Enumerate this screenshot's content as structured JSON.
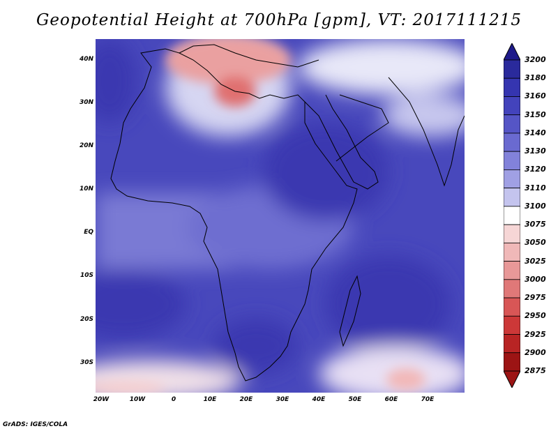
{
  "title": "Geopotential Height at 700hPa [gpm], VT: 2017111215",
  "credit": "GrADS: IGES/COLA",
  "lat_labels": [
    "40N",
    "30N",
    "20N",
    "10N",
    "EQ",
    "10S",
    "20S",
    "30S"
  ],
  "lon_labels": [
    "20W",
    "10W",
    "0",
    "10E",
    "20E",
    "30E",
    "40E",
    "50E",
    "60E",
    "70E"
  ],
  "colorbar": {
    "levels": [
      "3200",
      "3180",
      "3160",
      "3150",
      "3140",
      "3130",
      "3120",
      "3110",
      "3100",
      "3075",
      "3050",
      "3025",
      "3000",
      "2975",
      "2950",
      "2925",
      "2900",
      "2875"
    ],
    "colors": [
      "#1e1a8a",
      "#2a2a9c",
      "#3535b0",
      "#4343bc",
      "#5555c6",
      "#6a6ad0",
      "#8282da",
      "#a0a0e4",
      "#c4c4ee",
      "#ffffff",
      "#f6d6d6",
      "#f0b8b8",
      "#e89898",
      "#e07878",
      "#d85656",
      "#cc3838",
      "#b82424",
      "#9c1414"
    ]
  },
  "field_colors": {
    "deep": "#3a38b0",
    "mid": "#5c5cc8",
    "light": "#8e8ede",
    "pale": "#cfcff0",
    "warm": "#f3c8c8",
    "hot": "#e07070"
  }
}
